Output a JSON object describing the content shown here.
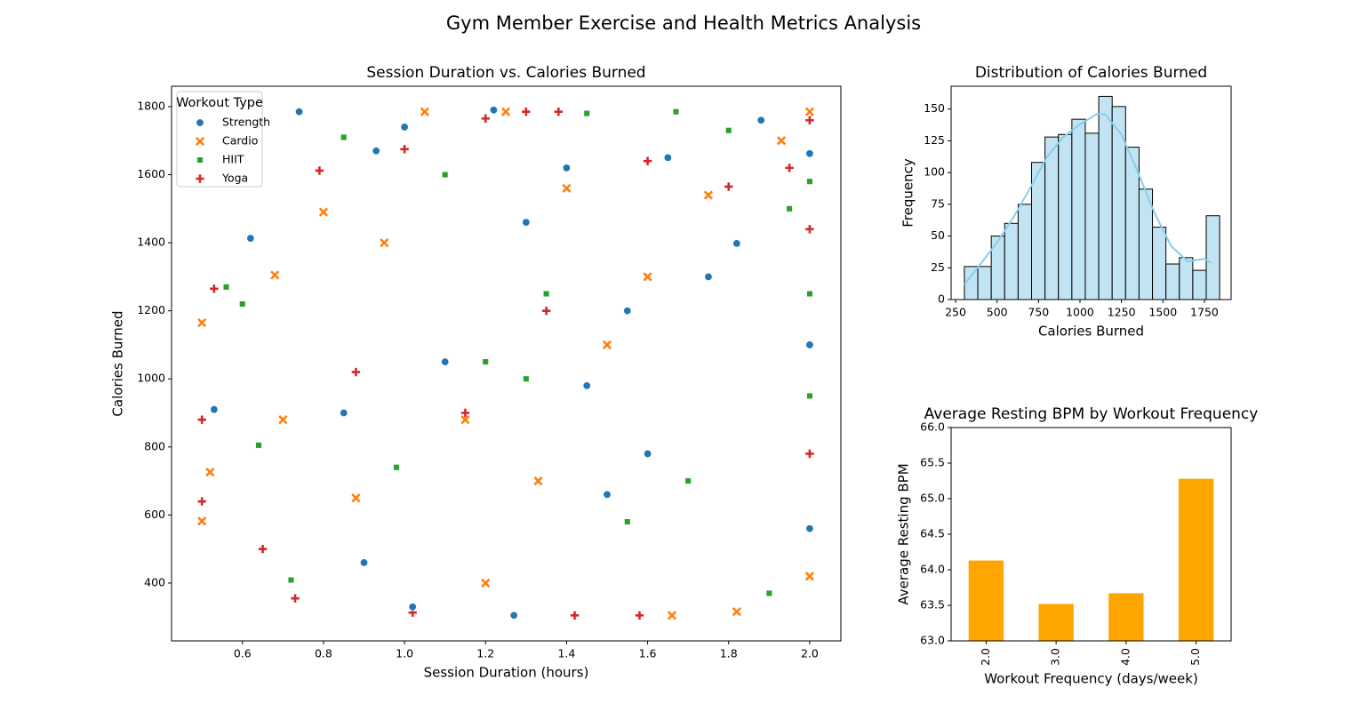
{
  "title": "Gym Member Exercise and Health Metrics Analysis",
  "chart_data": [
    {
      "type": "scatter",
      "title": "Session Duration vs. Calories Burned",
      "x_label": "Session Duration (hours)",
      "y_label": "Calories Burned",
      "legend_title": "Workout Type",
      "legend": "upper left",
      "xlim": [
        0.425,
        2.077
      ],
      "ylim": [
        230,
        1860
      ],
      "xticks": [
        0.6,
        0.8,
        {
          "value": 1.0,
          "label": "1.0"
        },
        1.2,
        1.4,
        1.6,
        1.8,
        {
          "value": 2.0,
          "label": "2.0"
        }
      ],
      "yticks": [
        400,
        600,
        800,
        1000,
        1200,
        1400,
        1600,
        1800
      ],
      "series": [
        {
          "name": "Strength",
          "color": "#1f77b4",
          "marker": "circle",
          "x": [
            0.62,
            0.74,
            1.0,
            1.4,
            0.93,
            1.22,
            1.3,
            1.55,
            0.85,
            1.1,
            1.6,
            1.75,
            1.88,
            2.0,
            2.0,
            2.0,
            1.5,
            1.27,
            0.53,
            1.82,
            1.45,
            0.9,
            1.02,
            1.65
          ],
          "y": [
            1413,
            1785,
            1740,
            1620,
            1670,
            1790,
            1460,
            1200,
            900,
            1050,
            780,
            1300,
            1760,
            1662,
            1100,
            560,
            660,
            305,
            910,
            1398,
            980,
            460,
            330,
            1650
          ]
        },
        {
          "name": "Cardio",
          "color": "#ff7f0e",
          "marker": "x",
          "x": [
            0.5,
            0.5,
            0.52,
            0.68,
            0.8,
            1.05,
            1.25,
            1.4,
            1.15,
            0.95,
            1.33,
            1.6,
            1.66,
            1.82,
            1.93,
            2.0,
            2.0,
            1.2,
            0.7,
            1.5,
            1.75,
            0.88
          ],
          "y": [
            1165,
            582,
            726,
            1305,
            1490,
            1785,
            1785,
            1560,
            880,
            1400,
            700,
            1300,
            305,
            316,
            1700,
            1785,
            420,
            400,
            880,
            1100,
            1540,
            650
          ]
        },
        {
          "name": "HIIT",
          "color": "#2ca02c",
          "marker": "square",
          "x": [
            0.56,
            0.6,
            0.72,
            0.85,
            1.1,
            1.35,
            1.45,
            1.67,
            1.8,
            1.95,
            2.0,
            2.0,
            2.0,
            1.9,
            0.64,
            1.2,
            1.55,
            0.98,
            1.3,
            1.7
          ],
          "y": [
            1270,
            1220,
            409,
            1710,
            1600,
            1250,
            1780,
            1785,
            1730,
            1500,
            1580,
            1250,
            950,
            370,
            805,
            1050,
            580,
            740,
            1000,
            700
          ]
        },
        {
          "name": "Yoga",
          "color": "#d62728",
          "marker": "plus",
          "x": [
            0.5,
            0.5,
            0.53,
            0.65,
            0.73,
            0.79,
            1.0,
            1.2,
            1.3,
            1.38,
            1.6,
            1.58,
            1.42,
            1.02,
            1.35,
            1.15,
            1.8,
            2.0,
            2.0,
            2.0,
            1.95,
            0.88
          ],
          "y": [
            880,
            640,
            1265,
            500,
            355,
            1612,
            1675,
            1765,
            1785,
            1785,
            1640,
            305,
            305,
            313,
            1200,
            900,
            1565,
            1760,
            1440,
            780,
            1620,
            1020
          ]
        }
      ]
    },
    {
      "type": "histogram",
      "title": "Distribution of Calories Burned",
      "x_label": "Calories Burned",
      "y_label": "Frequency",
      "xlim": [
        223,
        1911
      ],
      "ylim": [
        0,
        168
      ],
      "xticks": [
        250,
        500,
        750,
        1000,
        1250,
        1500,
        1750
      ],
      "yticks": [
        0,
        25,
        50,
        75,
        100,
        125,
        150
      ],
      "color": "#c2e3f2",
      "bins": [
        303,
        384,
        465,
        546,
        627,
        708,
        789,
        870,
        951,
        1032,
        1113,
        1194,
        1275,
        1356,
        1437,
        1518,
        1599,
        1680,
        1761,
        1842
      ],
      "counts": [
        26,
        26,
        50,
        60,
        75,
        108,
        128,
        130,
        142,
        131,
        160,
        152,
        120,
        87,
        57,
        28,
        33,
        23,
        66
      ],
      "kde": {
        "color": "#87ceeb",
        "x": [
          303,
          400,
          500,
          600,
          700,
          800,
          900,
          1000,
          1100,
          1150,
          1250,
          1350,
          1450,
          1550,
          1650,
          1750,
          1790
        ],
        "y": [
          12,
          28,
          45,
          65,
          88,
          112,
          128,
          138,
          146,
          146,
          130,
          100,
          68,
          42,
          30,
          32,
          29
        ]
      }
    },
    {
      "type": "bar",
      "title": "Average Resting BPM by Workout Frequency",
      "x_label": "Workout Frequency (days/week)",
      "y_label": "Average Resting BPM",
      "categories": [
        "2.0",
        "3.0",
        "4.0",
        "5.0"
      ],
      "values": [
        64.13,
        63.52,
        63.67,
        65.28
      ],
      "color": "#ffa500",
      "ylim": [
        63,
        66
      ],
      "yticks": [
        {
          "value": 63,
          "label": "63.0"
        },
        {
          "value": 63.5,
          "label": "63.5"
        },
        {
          "value": 64,
          "label": "64.0"
        },
        {
          "value": 64.5,
          "label": "64.5"
        },
        {
          "value": 65,
          "label": "65.0"
        },
        {
          "value": 65.5,
          "label": "65.5"
        },
        {
          "value": 66,
          "label": "66.0"
        }
      ]
    }
  ]
}
